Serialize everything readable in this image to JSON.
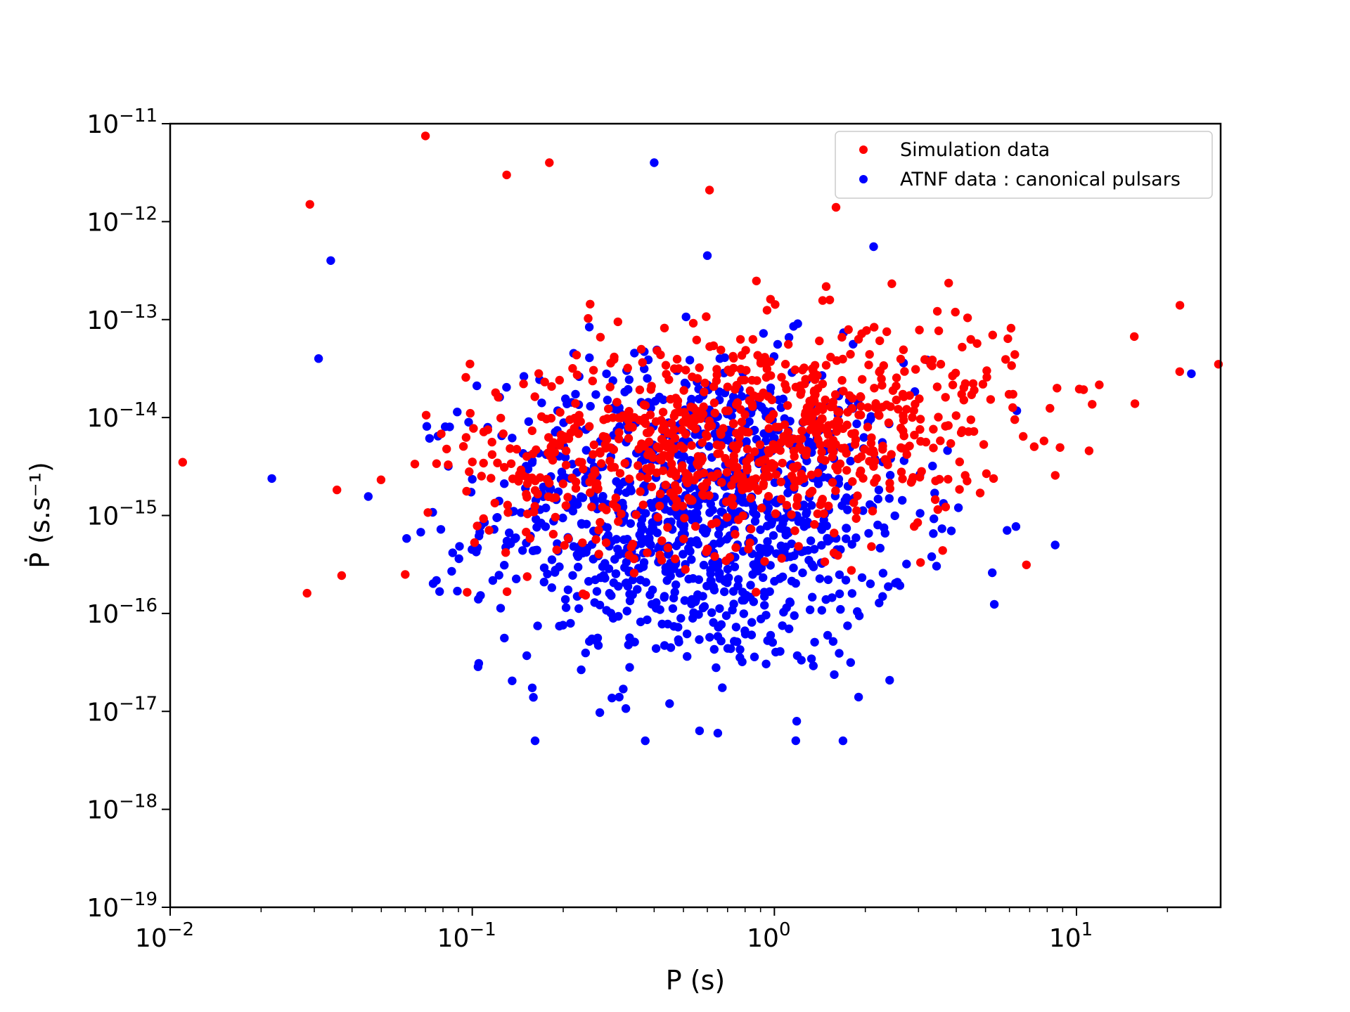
{
  "chart_data": {
    "type": "scatter",
    "title": "",
    "xlabel": "P (s)",
    "ylabel": "Ṗ (s.s⁻¹)",
    "xscale": "log",
    "yscale": "log",
    "xlim": [
      0.01,
      30
    ],
    "ylim": [
      1e-19,
      1e-11
    ],
    "grid": false,
    "legend_position": "top-right",
    "x_ticks": [
      {
        "base": "10",
        "exp": "−2"
      },
      {
        "base": "10",
        "exp": "−1"
      },
      {
        "base": "10",
        "exp": "0"
      },
      {
        "base": "10",
        "exp": "1"
      }
    ],
    "y_ticks": [
      {
        "base": "10",
        "exp": "−11"
      },
      {
        "base": "10",
        "exp": "−12"
      },
      {
        "base": "10",
        "exp": "−13"
      },
      {
        "base": "10",
        "exp": "−14"
      },
      {
        "base": "10",
        "exp": "−15"
      },
      {
        "base": "10",
        "exp": "−16"
      },
      {
        "base": "10",
        "exp": "−17"
      },
      {
        "base": "10",
        "exp": "−18"
      },
      {
        "base": "10",
        "exp": "−19"
      }
    ],
    "series": [
      {
        "name": "Simulation data",
        "color": "#ff0000",
        "center": {
          "logx": -0.1,
          "logy": -14.2
        },
        "spread": {
          "logx": 0.45,
          "logy": 0.55
        },
        "count": 900,
        "sample_points": [
          [
            0.029,
            1.5e-12
          ],
          [
            0.07,
            7.5e-12
          ],
          [
            0.61,
            2.1e-12
          ],
          [
            0.13,
            3e-12
          ],
          [
            1.6,
            1.4e-12
          ],
          [
            0.011,
            3.5e-15
          ],
          [
            29.5,
            3.5e-14
          ],
          [
            22,
            1.4e-13
          ],
          [
            0.06,
            2.5e-16
          ],
          [
            0.18,
            4e-12
          ],
          [
            0.52,
            1.5e-15
          ],
          [
            1.2,
            6e-15
          ]
        ]
      },
      {
        "name": "ATNF data : canonical pulsars",
        "color": "#0000ff",
        "center": {
          "logx": -0.25,
          "logy": -15.0
        },
        "spread": {
          "logx": 0.35,
          "logy": 0.8
        },
        "count": 1100,
        "sample_points": [
          [
            0.4,
            4e-12
          ],
          [
            0.65,
            6e-18
          ],
          [
            0.034,
            4e-13
          ],
          [
            24,
            2.8e-14
          ],
          [
            0.031,
            4e-14
          ],
          [
            8.5,
            5e-16
          ],
          [
            0.45,
            1.2e-17
          ],
          [
            1.9,
            1.4e-17
          ],
          [
            0.6,
            4.5e-13
          ],
          [
            0.27,
            3e-16
          ]
        ]
      }
    ]
  }
}
